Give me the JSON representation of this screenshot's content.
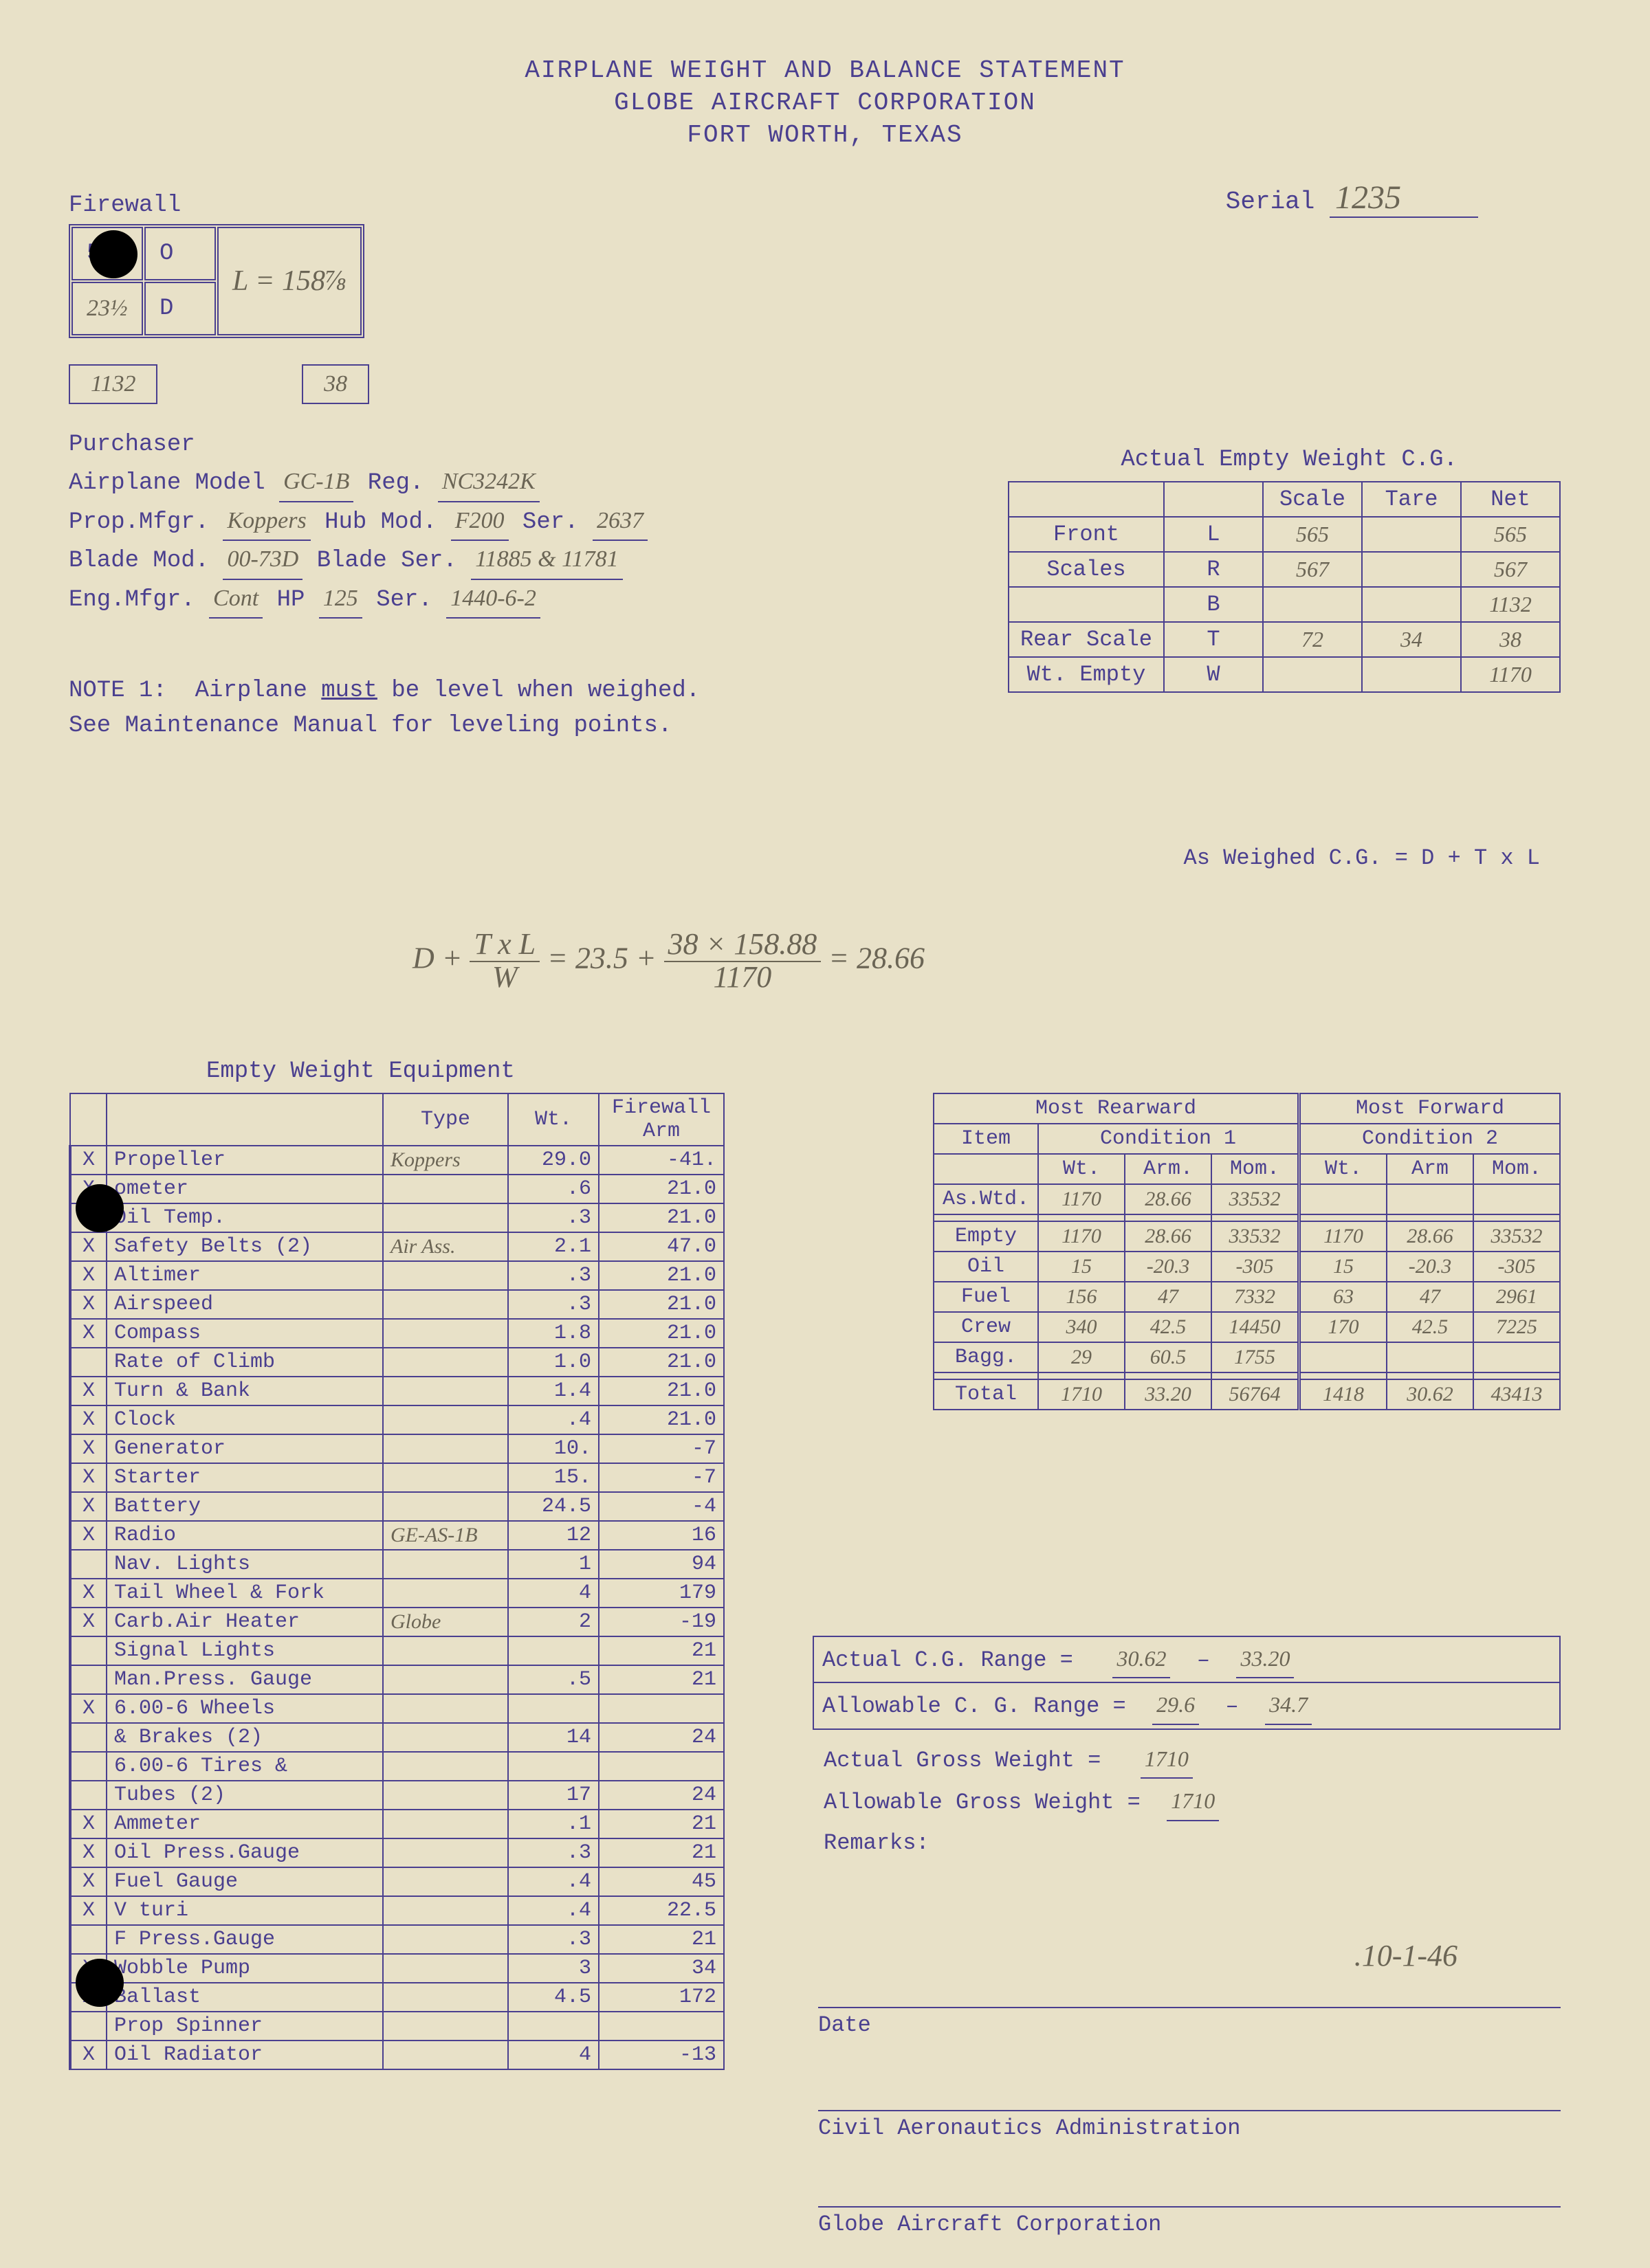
{
  "header": {
    "line1": "AIRPLANE WEIGHT AND BALANCE STATEMENT",
    "line2": "GLOBE AIRCRAFT CORPORATION",
    "line3": "FORT WORTH, TEXAS"
  },
  "serial": {
    "label": "Serial",
    "value": "1235"
  },
  "firewall": {
    "label": "Firewall",
    "cell_5": "5",
    "cell_23half": "23½",
    "cell_O": "O",
    "cell_D": "D",
    "cell_L": "L = 158⅞"
  },
  "boxes": {
    "b1": "1132",
    "b2": "38"
  },
  "purchaser": {
    "label": "Purchaser",
    "model_label": "Airplane Model",
    "model": "GC-1B",
    "reg_label": "Reg.",
    "reg": "NC3242K",
    "prop_label": "Prop.Mfgr.",
    "prop": "Koppers",
    "hub_label": "Hub Mod.",
    "hub": "F200",
    "ser_label": "Ser.",
    "ser1": "2637",
    "blade_label": "Blade Mod.",
    "blade": "00-73D",
    "blade_ser_label": "Blade Ser.",
    "blade_ser": "11885 & 11781",
    "eng_label": "Eng.Mfgr.",
    "eng": "Cont",
    "hp_label": "HP",
    "hp": "125",
    "ser2_label": "Ser.",
    "ser2": "1440-6-2"
  },
  "note1": {
    "label": "NOTE 1:",
    "text1": "Airplane",
    "must": "must",
    "text2": "be level when weighed. See Maintenance Manual for leveling points."
  },
  "weight_table": {
    "caption": "Actual Empty Weight C.G.",
    "headers": [
      "",
      "",
      "Scale",
      "Tare",
      "Net"
    ],
    "rows": [
      [
        "Front",
        "L",
        "565",
        "",
        "565"
      ],
      [
        "Scales",
        "R",
        "567",
        "",
        "567"
      ],
      [
        "",
        "B",
        "",
        "",
        "1132"
      ],
      [
        "Rear Scale",
        "T",
        "72",
        "34",
        "38"
      ],
      [
        "Wt. Empty",
        "W",
        "",
        "",
        "1170"
      ]
    ],
    "asweighed": "As Weighed C.G.    = D + T x L"
  },
  "formula": {
    "prefix": "D + ",
    "top1": "T x L",
    "bot1": "W",
    "equals": " = 23.5 + ",
    "top2": "38 × 158.88",
    "bot2": "1170",
    "result": " = 28.66"
  },
  "equipment": {
    "caption": "Empty Weight Equipment",
    "headers": [
      "",
      "",
      "Type",
      "Wt.",
      "Firewall Arm"
    ],
    "rows": [
      [
        "X",
        "Propeller",
        "Koppers",
        "29.0",
        "-41."
      ],
      [
        "X",
        "   ometer",
        "",
        ".6",
        "21.0"
      ],
      [
        "X",
        "Oil Temp.",
        "",
        ".3",
        "21.0"
      ],
      [
        "X",
        "Safety Belts (2)",
        "Air Ass.",
        "2.1",
        "47.0"
      ],
      [
        "X",
        "Altimer",
        "",
        ".3",
        "21.0"
      ],
      [
        "X",
        "Airspeed",
        "",
        ".3",
        "21.0"
      ],
      [
        "X",
        "Compass",
        "",
        "1.8",
        "21.0"
      ],
      [
        "",
        "Rate of Climb",
        "",
        "1.0",
        "21.0"
      ],
      [
        "X",
        "Turn & Bank",
        "",
        "1.4",
        "21.0"
      ],
      [
        "X",
        "Clock",
        "",
        ".4",
        "21.0"
      ],
      [
        "X",
        "Generator",
        "",
        "10.",
        "-7"
      ],
      [
        "X",
        "Starter",
        "",
        "15.",
        "-7"
      ],
      [
        "X",
        "Battery",
        "",
        "24.5",
        "-4"
      ],
      [
        "X",
        "Radio",
        "GE-AS-1B",
        "12",
        "16"
      ],
      [
        "",
        "Nav. Lights",
        "",
        "1",
        "94"
      ],
      [
        "X",
        "Tail Wheel & Fork",
        "",
        "4",
        "179"
      ],
      [
        "X",
        "Carb.Air Heater",
        "Globe",
        "2",
        "-19"
      ],
      [
        "",
        "Signal Lights",
        "",
        "",
        "21"
      ],
      [
        "",
        "Man.Press. Gauge",
        "",
        ".5",
        "21"
      ],
      [
        "X",
        "6.00-6 Wheels",
        "",
        "",
        ""
      ],
      [
        "",
        "& Brakes (2)",
        "",
        "14",
        "24"
      ],
      [
        "",
        "6.00-6 Tires &",
        "",
        "",
        ""
      ],
      [
        "",
        "Tubes (2)",
        "",
        "17",
        "24"
      ],
      [
        "X",
        "Ammeter",
        "",
        ".1",
        "21"
      ],
      [
        "X",
        "Oil Press.Gauge",
        "",
        ".3",
        "21"
      ],
      [
        "X",
        "Fuel Gauge",
        "",
        ".4",
        "45"
      ],
      [
        "X",
        "V  turi",
        "",
        ".4",
        "22.5"
      ],
      [
        "",
        "F   Press.Gauge",
        "",
        ".3",
        "21"
      ],
      [
        "X",
        "Wobble Pump",
        "",
        "3",
        "34"
      ],
      [
        "X",
        "Ballast",
        "",
        "4.5",
        "172"
      ],
      [
        "",
        "Prop Spinner",
        "",
        "",
        ""
      ],
      [
        "X",
        "Oil Radiator",
        "",
        "4",
        "-13"
      ]
    ]
  },
  "rearward": {
    "h1": "Most Rearward",
    "h2": "Most Forward",
    "item": "Item",
    "cond1": "Condition 1",
    "cond2": "Condition 2",
    "sub": [
      "Wt.",
      "Arm.",
      "Mom.",
      "Wt.",
      "Arm",
      "Mom."
    ],
    "rows": [
      [
        "As.Wtd.",
        "1170",
        "28.66",
        "33532",
        "",
        "",
        ""
      ],
      [
        "",
        "",
        "",
        "",
        "",
        "",
        ""
      ],
      [
        "Empty",
        "1170",
        "28.66",
        "33532",
        "1170",
        "28.66",
        "33532"
      ],
      [
        "Oil",
        "15",
        "-20.3",
        "-305",
        "15",
        "-20.3",
        "-305"
      ],
      [
        "Fuel",
        "156",
        "47",
        "7332",
        "63",
        "47",
        "2961"
      ],
      [
        "Crew",
        "340",
        "42.5",
        "14450",
        "170",
        "42.5",
        "7225"
      ],
      [
        "Bagg.",
        "29",
        "60.5",
        "1755",
        "",
        "",
        ""
      ],
      [
        "",
        "",
        "",
        "",
        "",
        "",
        ""
      ],
      [
        "Total",
        "1710",
        "33.20",
        "56764",
        "1418",
        "30.62",
        "43413"
      ]
    ]
  },
  "cg": {
    "actual_label": "Actual C.G. Range =",
    "actual_lo": "30.62",
    "actual_hi": "33.20",
    "allow_label": "Allowable C. G. Range =",
    "allow_lo": "29.6",
    "allow_hi": "34.7"
  },
  "gross": {
    "actual_label": "Actual Gross Weight  =",
    "actual": "1710",
    "allow_label": "Allowable Gross Weight =",
    "allow": "1710",
    "remarks": "Remarks:"
  },
  "date": {
    "value": ".10-1-46",
    "label": "Date"
  },
  "caa": "Civil Aeronautics Administration",
  "globe": "Globe Aircraft Corporation"
}
